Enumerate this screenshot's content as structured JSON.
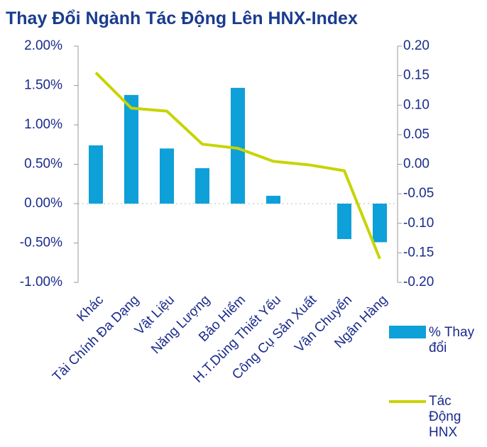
{
  "chart_data": {
    "type": "bar-line",
    "title": "Thay Đổi Ngành Tác Động Lên HNX-Index",
    "categories": [
      "Khác",
      "Tài Chính Đa Dạng",
      "Vật Liệu",
      "Năng Lượng",
      "Bảo Hiểm",
      "H.T.Dùng Thiết Yếu",
      "Công Cụ Sản Xuất",
      "Vận Chuyển",
      "Ngân Hàng"
    ],
    "series": [
      {
        "name": "% Thay đổi",
        "type": "bar",
        "color": "#0ea0d8",
        "values": [
          0.74,
          1.38,
          0.7,
          0.45,
          1.47,
          0.1,
          0.0,
          -0.45,
          -0.49
        ]
      },
      {
        "name": "Tác Động HNX",
        "type": "line",
        "axis": "y2",
        "color": "#c8d400",
        "values": [
          0.155,
          0.095,
          0.09,
          0.034,
          0.027,
          0.005,
          -0.001,
          -0.011,
          -0.16
        ]
      }
    ],
    "ylim": [
      -1,
      2
    ],
    "yticks": [
      {
        "value": -1,
        "label": "-1.00%"
      },
      {
        "value": -0.5,
        "label": "-0.50%"
      },
      {
        "value": 0,
        "label": "0.00%"
      },
      {
        "value": 0.5,
        "label": "0.50%"
      },
      {
        "value": 1,
        "label": "1.00%"
      },
      {
        "value": 1.5,
        "label": "1.50%"
      },
      {
        "value": 2,
        "label": "2.00%"
      }
    ],
    "y2lim": [
      -0.2,
      0.2
    ],
    "y2ticks": [
      {
        "value": -0.2,
        "label": "-0.20"
      },
      {
        "value": -0.15,
        "label": "-0.15"
      },
      {
        "value": -0.1,
        "label": "-0.10"
      },
      {
        "value": -0.05,
        "label": "-0.05"
      },
      {
        "value": 0,
        "label": "0.00"
      },
      {
        "value": 0.05,
        "label": "0.05"
      },
      {
        "value": 0.1,
        "label": "0.10"
      },
      {
        "value": 0.15,
        "label": "0.15"
      },
      {
        "value": 0.2,
        "label": "0.20"
      }
    ]
  }
}
